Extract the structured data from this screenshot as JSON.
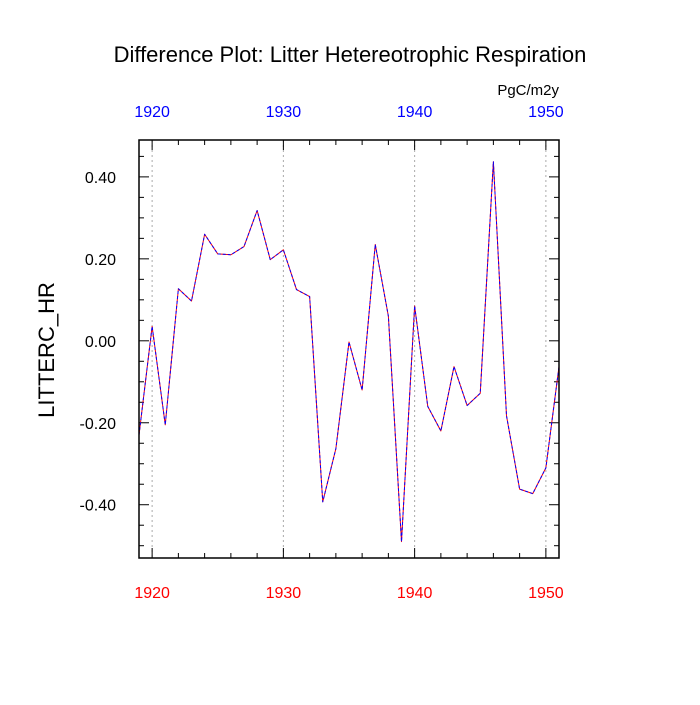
{
  "chart_data": {
    "type": "line",
    "title": "Difference Plot: Litter Hetereotrophic Respiration",
    "units": "PgC/m2y",
    "xlabel": "",
    "ylabel": "LITTERC_HR",
    "xlim": [
      1919,
      1951
    ],
    "ylim": [
      -0.53,
      0.49
    ],
    "x_ticks": [
      1920,
      1930,
      1940,
      1950
    ],
    "x_tick_labels": [
      "1920",
      "1930",
      "1940",
      "1950"
    ],
    "y_ticks": [
      0.4,
      0.2,
      0.0,
      -0.2,
      -0.4
    ],
    "y_tick_labels": [
      "0.40",
      "0.20",
      "0.00",
      "-0.20",
      "-0.40"
    ],
    "grid": "vertical dotted at major x ticks",
    "series": [
      {
        "name": "red",
        "color": "#ff0000",
        "x": [
          1919,
          1920,
          1921,
          1922,
          1923,
          1924,
          1925,
          1926,
          1927,
          1928,
          1929,
          1930,
          1931,
          1932,
          1933,
          1934,
          1935,
          1936,
          1937,
          1938,
          1939,
          1940,
          1941,
          1942,
          1943,
          1944,
          1945,
          1946,
          1947,
          1948,
          1949,
          1950,
          1951
        ],
        "values": [
          -0.23,
          0.035,
          -0.205,
          0.127,
          0.097,
          0.26,
          0.212,
          0.21,
          0.23,
          0.318,
          0.198,
          0.222,
          0.125,
          0.108,
          -0.393,
          -0.263,
          -0.003,
          -0.12,
          0.235,
          0.06,
          -0.49,
          0.085,
          -0.16,
          -0.22,
          -0.063,
          -0.158,
          -0.128,
          0.437,
          -0.183,
          -0.362,
          -0.373,
          -0.31,
          -0.063
        ]
      },
      {
        "name": "blue",
        "color": "#0000ff",
        "x": [
          1919,
          1920,
          1921,
          1922,
          1923,
          1924,
          1925,
          1926,
          1927,
          1928,
          1929,
          1930,
          1931,
          1932,
          1933,
          1934,
          1935,
          1936,
          1937,
          1938,
          1939,
          1940,
          1941,
          1942,
          1943,
          1944,
          1945,
          1946,
          1947,
          1948,
          1949,
          1950,
          1951
        ],
        "values": [
          -0.23,
          0.035,
          -0.205,
          0.127,
          0.097,
          0.26,
          0.212,
          0.21,
          0.23,
          0.318,
          0.198,
          0.222,
          0.125,
          0.108,
          -0.393,
          -0.263,
          -0.003,
          -0.12,
          0.235,
          0.06,
          -0.49,
          0.085,
          -0.16,
          -0.22,
          -0.063,
          -0.158,
          -0.128,
          0.437,
          -0.183,
          -0.362,
          -0.373,
          -0.31,
          -0.063
        ]
      }
    ]
  },
  "colors": {
    "top_axis_labels": "#0000ff",
    "bottom_axis_labels": "#ff0000",
    "frame": "#000000",
    "grid": "#aaaaaa"
  }
}
